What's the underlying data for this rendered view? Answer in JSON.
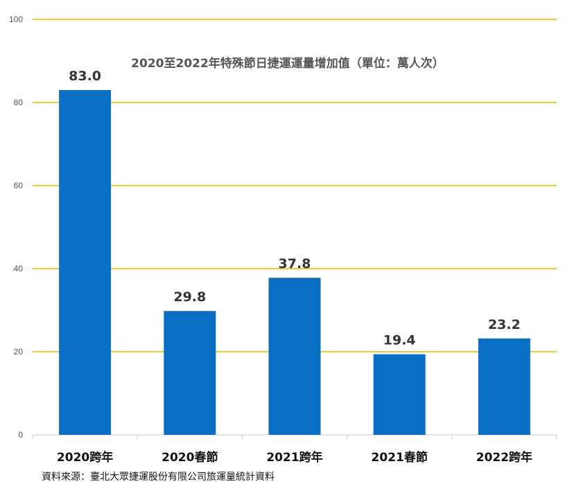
{
  "chart_data": {
    "type": "bar",
    "title": "2020至2022年特殊節日捷運運量增加值（單位：萬人次）",
    "categories": [
      "2020跨年",
      "2020春節",
      "2021跨年",
      "2021春節",
      "2022跨年"
    ],
    "values": [
      83.0,
      29.8,
      37.8,
      19.4,
      23.2
    ],
    "value_labels": [
      "83.0",
      "29.8",
      "37.8",
      "19.4",
      "23.2"
    ],
    "y_ticks": [
      0,
      20,
      40,
      60,
      80,
      100
    ],
    "ylim": [
      0,
      100
    ],
    "xlabel": "",
    "ylabel": "",
    "grid": true,
    "legend": "none",
    "colors": {
      "bar": "#0A6FC2",
      "gridline": "#E8C93A",
      "axis": "#CCCCCC"
    }
  },
  "source_note": "資料來源：臺北大眾捷運股份有限公司旅運量統計資料"
}
